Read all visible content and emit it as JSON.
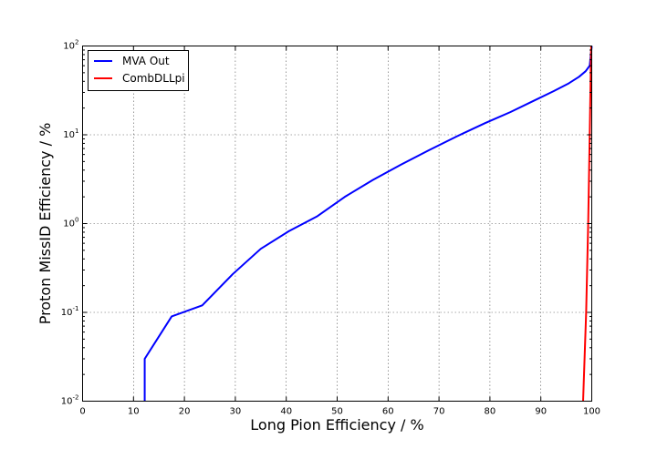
{
  "chart_data": {
    "type": "line",
    "xlabel": "Long Pion Efficiency / %",
    "ylabel": "Proton MissID Efficiency / %",
    "xlim": [
      0,
      100
    ],
    "ylim": [
      0.01,
      100
    ],
    "yscale": "log",
    "grid": true,
    "legend_position": "top-left",
    "x_ticks": [
      0,
      10,
      20,
      30,
      40,
      50,
      60,
      70,
      80,
      90,
      100
    ],
    "y_ticks": [
      {
        "value": 0.01,
        "base": "10",
        "exp": "-2"
      },
      {
        "value": 0.1,
        "base": "10",
        "exp": "-1"
      },
      {
        "value": 1,
        "base": "10",
        "exp": "0"
      },
      {
        "value": 10,
        "base": "10",
        "exp": "1"
      },
      {
        "value": 100,
        "base": "10",
        "exp": "2"
      }
    ],
    "series": [
      {
        "name": "MVA Out",
        "color": "#0000ff",
        "x": [
          12.2,
          12.2,
          17.5,
          23.5,
          29.5,
          35,
          40.5,
          46,
          51.5,
          57,
          62.5,
          68,
          73.5,
          79,
          84,
          88.5,
          92.5,
          95.5,
          97.5,
          98.8,
          99.6,
          100
        ],
        "y": [
          0.01,
          0.03,
          0.09,
          0.12,
          0.27,
          0.52,
          0.82,
          1.2,
          2.0,
          3.1,
          4.6,
          6.7,
          9.6,
          13.5,
          18.0,
          24.0,
          31.0,
          38.0,
          45.0,
          52.0,
          60.0,
          100.0
        ]
      },
      {
        "name": "CombDLLpi",
        "color": "#ff0000",
        "x": [
          98.3,
          98.9,
          99.3,
          99.6,
          99.8,
          99.9
        ],
        "y": [
          0.01,
          0.1,
          1.0,
          10.0,
          50.0,
          100.0
        ]
      }
    ]
  }
}
